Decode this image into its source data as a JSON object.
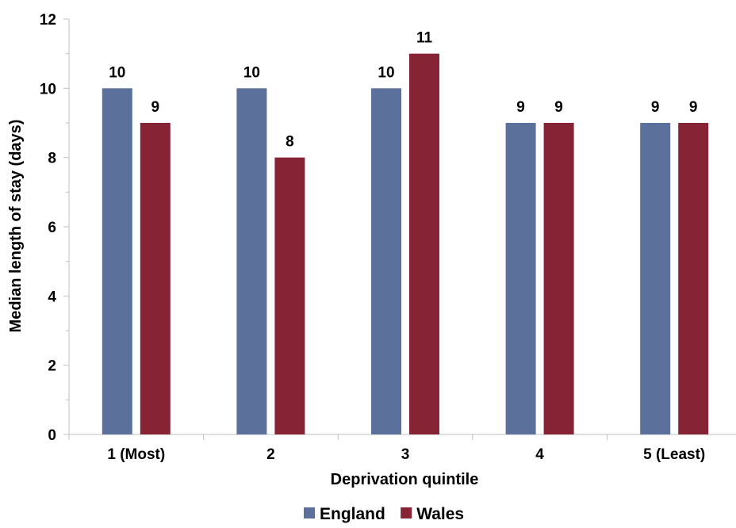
{
  "chart_data": {
    "type": "bar",
    "title": "",
    "xlabel": "Deprivation quintile",
    "ylabel": "Median length of stay (days)",
    "categories": [
      "1 (Most)",
      "2",
      "3",
      "4",
      "5 (Least)"
    ],
    "series": [
      {
        "name": "England",
        "color": "#5b709a",
        "values": [
          10,
          10,
          10,
          9,
          9
        ]
      },
      {
        "name": "Wales",
        "color": "#862334",
        "values": [
          9,
          8,
          11,
          9,
          9
        ]
      }
    ],
    "ylim": [
      0,
      12
    ],
    "yticks": [
      0,
      2,
      4,
      6,
      8,
      10,
      12
    ],
    "grid": false,
    "data_labels": true,
    "legend_position": "bottom"
  }
}
